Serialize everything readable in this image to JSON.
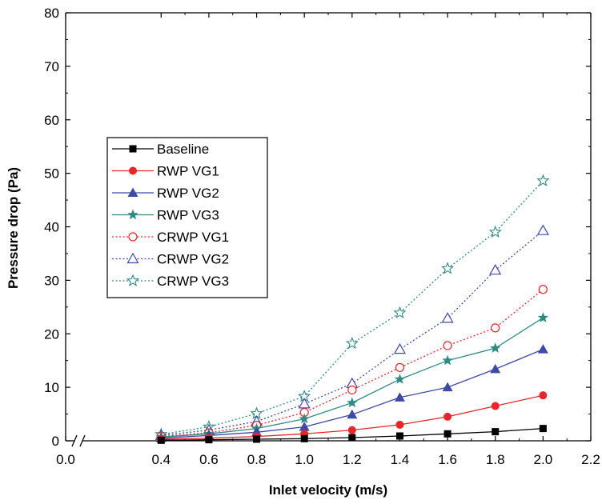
{
  "chart_data": {
    "type": "line",
    "title": "",
    "xlabel": "Inlet velocity (m/s)",
    "ylabel": "Pressure drop (Pa)",
    "xlim": [
      0.0,
      2.2
    ],
    "ylim": [
      0,
      80
    ],
    "x_ticks": [
      "0.0",
      "0.4",
      "0.6",
      "0.8",
      "1.0",
      "1.2",
      "1.4",
      "1.6",
      "1.8",
      "2.0",
      "2.2"
    ],
    "y_ticks": [
      "0",
      "10",
      "20",
      "30",
      "40",
      "50",
      "60",
      "70",
      "80"
    ],
    "axis_break": "between 0.0 and 0.4",
    "grid": false,
    "legend_position": "upper-left",
    "x": [
      0.4,
      0.6,
      0.8,
      1.0,
      1.2,
      1.4,
      1.6,
      1.8,
      2.0
    ],
    "series": [
      {
        "name": "Baseline",
        "color": "#000000",
        "marker": "filled-square",
        "line": "solid",
        "values": [
          0.1,
          0.2,
          0.3,
          0.4,
          0.6,
          0.9,
          1.3,
          1.7,
          2.3
        ]
      },
      {
        "name": "RWP VG1",
        "color": "#e8262a",
        "marker": "filled-circle",
        "line": "solid",
        "values": [
          0.3,
          0.5,
          0.8,
          1.3,
          2.0,
          3.0,
          4.5,
          6.5,
          8.5
        ]
      },
      {
        "name": "RWP VG2",
        "color": "#3d4aa6",
        "marker": "filled-triangle",
        "line": "solid",
        "values": [
          0.5,
          1.0,
          1.6,
          2.6,
          4.9,
          8.1,
          10.0,
          13.4,
          17.1
        ]
      },
      {
        "name": "RWP VG3",
        "color": "#2f8a83",
        "marker": "filled-star",
        "line": "solid",
        "values": [
          0.7,
          1.3,
          2.3,
          4.1,
          7.1,
          11.5,
          15.0,
          17.3,
          23.0
        ]
      },
      {
        "name": "CRWP VG1",
        "color": "#e8262a",
        "marker": "open-circle",
        "line": "dotted",
        "values": [
          0.8,
          1.5,
          2.9,
          5.3,
          9.5,
          13.7,
          17.8,
          21.1,
          28.3
        ]
      },
      {
        "name": "CRWP VG2",
        "color": "#3d4aa6",
        "marker": "open-triangle",
        "line": "dotted",
        "values": [
          1.0,
          2.0,
          3.6,
          6.9,
          10.7,
          17.1,
          22.9,
          31.9,
          39.3
        ]
      },
      {
        "name": "CRWP VG3",
        "color": "#2f8a83",
        "marker": "open-star",
        "line": "dotted",
        "values": [
          1.2,
          2.6,
          5.1,
          8.3,
          18.2,
          23.9,
          32.2,
          39.0,
          48.6
        ]
      }
    ]
  }
}
